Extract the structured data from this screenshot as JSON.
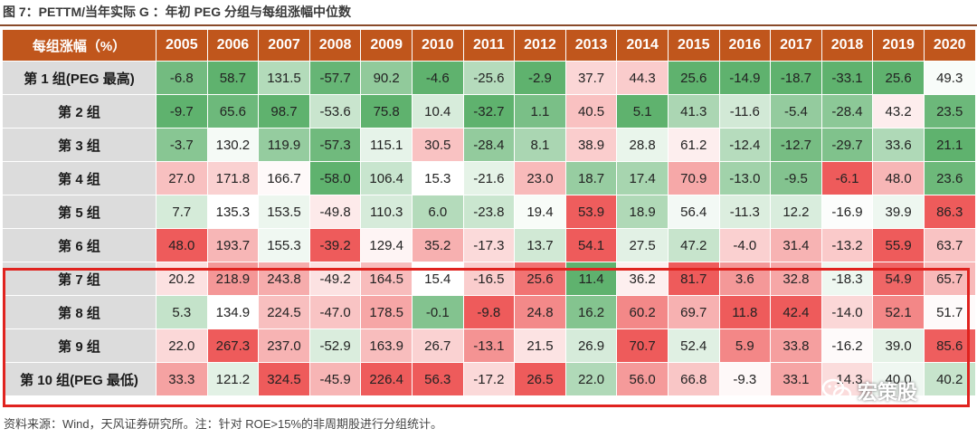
{
  "figure": {
    "title": "图 7：PETTM/当年实际 G ：年初 PEG 分组与每组涨幅中位数",
    "source": "资料来源：Wind，天风证券研究所。注：针对 ROE>15%的非周期股进行分组统计。",
    "watermark": "宏策股"
  },
  "table": {
    "header_label": "每组涨幅（%）",
    "years": [
      "2005",
      "2006",
      "2007",
      "2008",
      "2009",
      "2010",
      "2011",
      "2012",
      "2013",
      "2014",
      "2015",
      "2016",
      "2017",
      "2018",
      "2019",
      "2020"
    ],
    "rows": [
      {
        "label": "第 1 组(PEG 最高)",
        "values": [
          "-6.8",
          "58.7",
          "131.5",
          "-57.7",
          "90.2",
          "-4.6",
          "-25.6",
          "-2.9",
          "37.7",
          "44.3",
          "25.6",
          "-14.9",
          "-18.7",
          "-33.1",
          "25.6",
          "49.3"
        ]
      },
      {
        "label": "第 2 组",
        "values": [
          "-9.7",
          "65.6",
          "98.7",
          "-53.6",
          "75.8",
          "10.4",
          "-32.7",
          "1.1",
          "40.5",
          "5.1",
          "41.3",
          "-11.6",
          "-5.4",
          "-28.4",
          "43.2",
          "23.5"
        ]
      },
      {
        "label": "第 3 组",
        "values": [
          "-3.7",
          "130.2",
          "119.9",
          "-57.3",
          "115.1",
          "30.5",
          "-28.4",
          "8.1",
          "38.9",
          "28.8",
          "61.2",
          "-12.4",
          "-12.7",
          "-29.7",
          "33.6",
          "21.1"
        ]
      },
      {
        "label": "第 4 组",
        "values": [
          "27.0",
          "171.8",
          "166.7",
          "-58.0",
          "106.4",
          "15.3",
          "-21.6",
          "23.0",
          "18.7",
          "17.4",
          "70.9",
          "-13.0",
          "-9.5",
          "-6.1",
          "48.0",
          "23.6"
        ]
      },
      {
        "label": "第 5 组",
        "values": [
          "7.7",
          "135.3",
          "153.5",
          "-49.8",
          "110.3",
          "6.0",
          "-23.8",
          "19.4",
          "53.9",
          "18.9",
          "56.4",
          "-11.3",
          "12.2",
          "-16.9",
          "39.9",
          "86.3"
        ]
      },
      {
        "label": "第 6 组",
        "values": [
          "48.0",
          "193.7",
          "155.3",
          "-39.2",
          "129.4",
          "35.2",
          "-17.3",
          "13.7",
          "54.1",
          "27.5",
          "47.2",
          "-4.0",
          "31.4",
          "-13.2",
          "55.9",
          "63.7"
        ]
      },
      {
        "label": "第 7 组",
        "values": [
          "20.2",
          "218.9",
          "243.8",
          "-49.2",
          "164.5",
          "15.4",
          "-16.5",
          "25.6",
          "11.4",
          "36.2",
          "81.7",
          "3.6",
          "32.8",
          "-18.3",
          "54.9",
          "65.7"
        ]
      },
      {
        "label": "第 8 组",
        "values": [
          "5.3",
          "134.9",
          "224.5",
          "-47.0",
          "178.5",
          "-0.1",
          "-9.8",
          "24.8",
          "16.2",
          "60.2",
          "69.7",
          "11.8",
          "42.4",
          "-14.0",
          "52.1",
          "51.7"
        ]
      },
      {
        "label": "第 9 组",
        "values": [
          "22.0",
          "267.3",
          "237.0",
          "-52.9",
          "163.9",
          "26.7",
          "-13.1",
          "21.5",
          "26.9",
          "70.7",
          "52.4",
          "5.9",
          "33.8",
          "-16.2",
          "39.0",
          "85.6"
        ]
      },
      {
        "label": "第 10 组(PEG 最低)",
        "values": [
          "33.3",
          "121.2",
          "324.5",
          "-45.9",
          "226.4",
          "56.3",
          "-17.2",
          "26.5",
          "22.0",
          "56.0",
          "66.8",
          "-9.3",
          "33.1",
          "-14.3",
          "40.0",
          "40.2"
        ]
      }
    ]
  },
  "colors": {
    "header_bg": "#c0561c",
    "label_bg": "#dcdcdc",
    "scale_low": "#5fb26e",
    "scale_mid": "#ffffff",
    "scale_high": "#ee5b5b",
    "highlight_border": "#e0231f"
  }
}
